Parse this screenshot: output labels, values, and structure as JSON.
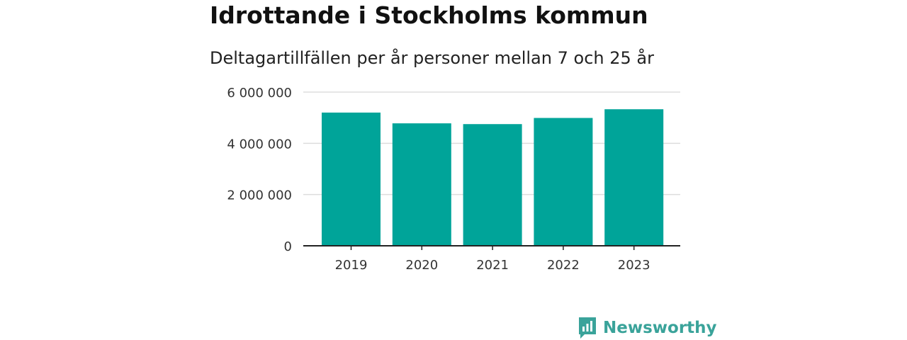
{
  "header": {
    "title": "Idrottande i Stockholms kommun",
    "subtitle": "Deltagartillfällen per år personer mellan 7 och 25 år"
  },
  "brand": {
    "name": "Newsworthy"
  },
  "colors": {
    "bar": "#00a499",
    "grid": "#dddddd",
    "axis": "#222222",
    "brand": "#3aa39a"
  },
  "chart_data": {
    "type": "bar",
    "title": "Idrottande i Stockholms kommun",
    "subtitle": "Deltagartillfällen per år personer mellan 7 och 25 år",
    "categories": [
      "2019",
      "2020",
      "2021",
      "2022",
      "2023"
    ],
    "values": [
      5200000,
      4780000,
      4750000,
      4990000,
      5330000
    ],
    "ylim": [
      0,
      6000000
    ],
    "yticks": [
      0,
      2000000,
      4000000,
      6000000
    ],
    "ytick_labels": [
      "0",
      "2 000 000",
      "4 000 000",
      "6 000 000"
    ],
    "xlabel": "",
    "ylabel": "",
    "grid": true,
    "legend": "none"
  }
}
